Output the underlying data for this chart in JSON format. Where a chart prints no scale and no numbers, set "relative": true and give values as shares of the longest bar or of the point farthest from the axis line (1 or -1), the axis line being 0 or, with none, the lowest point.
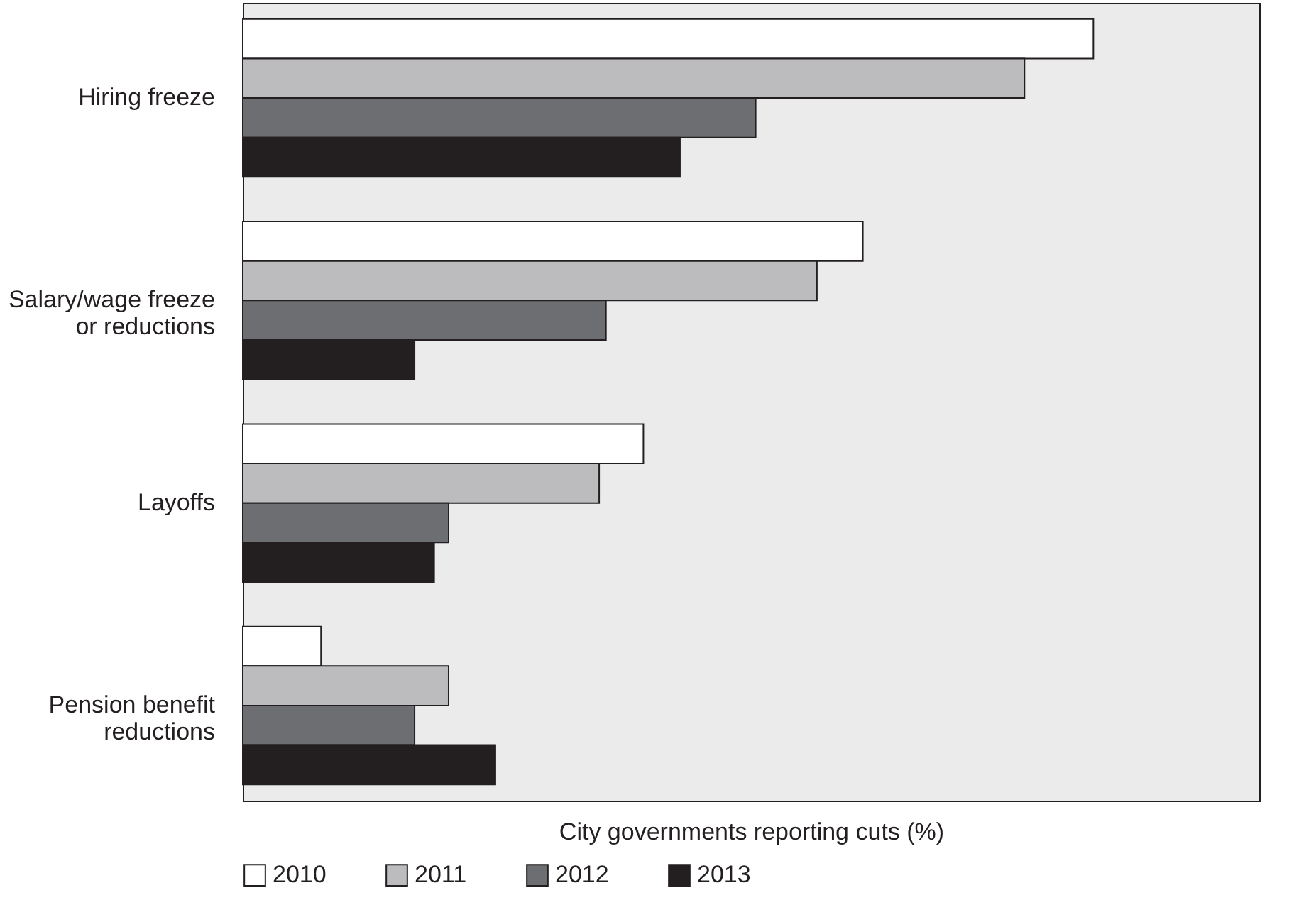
{
  "chart_data": {
    "type": "bar",
    "orientation": "horizontal",
    "relative": true,
    "xlabel": "City governments reporting cuts (%)",
    "categories": [
      "Hiring freeze",
      "Salary/wage freeze or reductions",
      "Layoffs",
      "Pension benefit reductions"
    ],
    "legend": "bottom",
    "grid": false,
    "series": [
      {
        "name": "2010",
        "color": "#ffffff",
        "values": [
          1,
          0.729,
          0.471,
          0.092
        ]
      },
      {
        "name": "2011",
        "color": "#bcbcbe",
        "values": [
          0.919,
          0.675,
          0.419,
          0.242
        ]
      },
      {
        "name": "2012",
        "color": "#6d6e71",
        "values": [
          0.603,
          0.427,
          0.242,
          0.202
        ]
      },
      {
        "name": "2013",
        "color": "#231f20",
        "values": [
          0.514,
          0.202,
          0.225,
          0.297
        ]
      }
    ]
  }
}
